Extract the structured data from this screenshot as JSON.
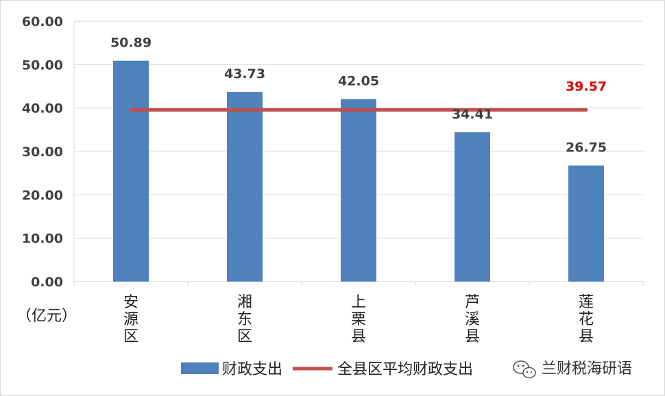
{
  "chart_data": {
    "type": "bar",
    "categories": [
      "安源区",
      "湘东区",
      "上栗县",
      "芦溪县",
      "莲花县"
    ],
    "series": [
      {
        "name": "财政支出",
        "type": "bar",
        "values": [
          50.89,
          43.73,
          42.05,
          34.41,
          26.75
        ],
        "color": "#4f81bd"
      },
      {
        "name": "全县区平均财政支出",
        "type": "line",
        "values": [
          39.57,
          39.57,
          39.57,
          39.57,
          39.57
        ],
        "color": "#c0504d"
      }
    ],
    "average_label": "39.57",
    "average_label_color": "#e00000",
    "ylim": [
      0,
      60
    ],
    "yticks": [
      "0.00",
      "10.00",
      "20.00",
      "30.00",
      "40.00",
      "50.00",
      "60.00"
    ],
    "unit_label": "（亿元）",
    "grid": true,
    "legend_position": "bottom"
  },
  "watermark": {
    "text": "兰财税海研语",
    "icon": "wechat-icon"
  }
}
